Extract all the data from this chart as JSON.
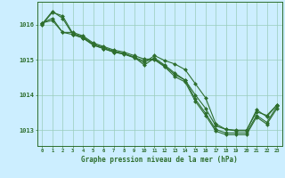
{
  "title": "Graphe pression niveau de la mer (hPa)",
  "background_color": "#cceeff",
  "grid_color": "#99ccbb",
  "line_color": "#2d6e2d",
  "marker_color": "#2d6e2d",
  "xlim": [
    -0.5,
    23.5
  ],
  "ylim": [
    1012.55,
    1016.65
  ],
  "yticks": [
    1013,
    1014,
    1015,
    1016
  ],
  "xticks": [
    0,
    1,
    2,
    3,
    4,
    5,
    6,
    7,
    8,
    9,
    10,
    11,
    12,
    13,
    14,
    15,
    16,
    17,
    18,
    19,
    20,
    21,
    22,
    23
  ],
  "series": [
    [
      1016.0,
      1016.35,
      1016.25,
      1015.75,
      1015.65,
      1015.45,
      1015.35,
      1015.25,
      1015.18,
      1015.08,
      1014.85,
      1015.05,
      1014.85,
      1014.62,
      1014.42,
      1014.0,
      1013.62,
      1013.12,
      1013.02,
      1013.0,
      1013.0,
      1013.52,
      1013.42,
      1013.72
    ],
    [
      1016.02,
      1016.38,
      1016.18,
      1015.72,
      1015.62,
      1015.42,
      1015.32,
      1015.22,
      1015.16,
      1015.06,
      1014.92,
      1015.12,
      1014.98,
      1014.88,
      1014.72,
      1014.32,
      1013.92,
      1013.18,
      1013.02,
      1012.98,
      1012.98,
      1013.58,
      1013.38,
      1013.72
    ],
    [
      1016.05,
      1016.12,
      1015.78,
      1015.78,
      1015.68,
      1015.48,
      1015.38,
      1015.28,
      1015.22,
      1015.12,
      1015.02,
      1015.02,
      1014.82,
      1014.58,
      1014.42,
      1013.88,
      1013.48,
      1013.02,
      1012.92,
      1012.92,
      1012.92,
      1013.42,
      1013.22,
      1013.68
    ],
    [
      1016.05,
      1016.18,
      1015.78,
      1015.72,
      1015.62,
      1015.42,
      1015.32,
      1015.22,
      1015.17,
      1015.07,
      1014.97,
      1015.0,
      1014.8,
      1014.52,
      1014.37,
      1013.82,
      1013.42,
      1012.97,
      1012.87,
      1012.87,
      1012.87,
      1013.37,
      1013.17,
      1013.62
    ]
  ],
  "figsize": [
    3.2,
    2.0
  ],
  "dpi": 100
}
